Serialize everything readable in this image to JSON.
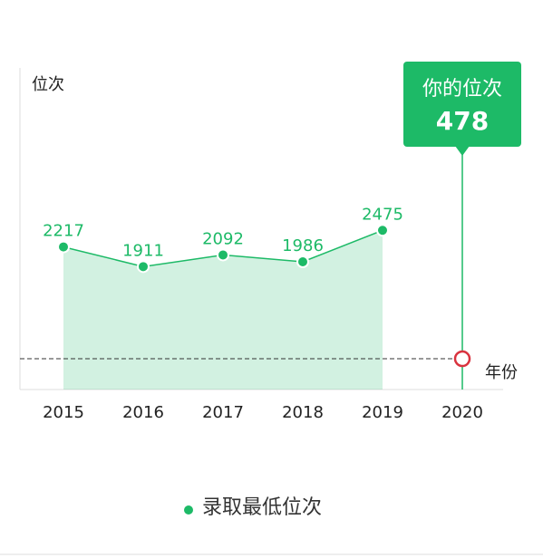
{
  "chart_data": {
    "type": "line",
    "y_label": "位次",
    "x_label": "年份",
    "categories": [
      "2015",
      "2016",
      "2017",
      "2018",
      "2019",
      "2020"
    ],
    "series": [
      {
        "name": "录取最低位次",
        "color": "#1dba67",
        "values": [
          2217,
          1911,
          2092,
          1986,
          2475,
          null
        ]
      }
    ],
    "ylim": [
      0,
      5000
    ],
    "marker": {
      "label": "你的位次",
      "value": 478,
      "category": "2020",
      "color": "#d9333f"
    }
  }
}
